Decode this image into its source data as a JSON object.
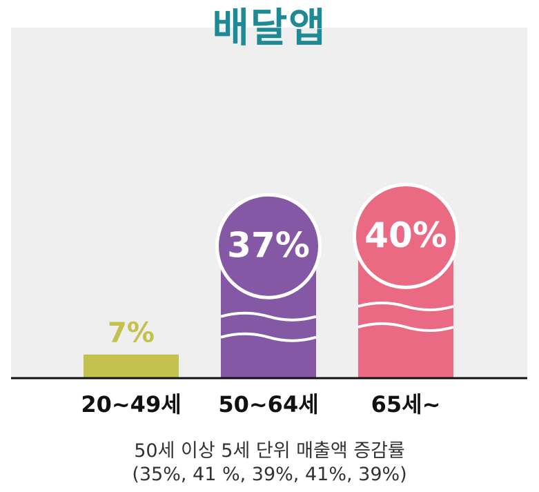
{
  "chart_data": {
    "type": "bar",
    "title": "배달앱",
    "categories": [
      "20~49세",
      "50~64세",
      "65세~"
    ],
    "values": [
      7,
      37,
      40
    ],
    "value_labels": [
      "7%",
      "37%",
      "40%"
    ],
    "colors": [
      "#c3c24e",
      "#8458a4",
      "#ea6a83"
    ],
    "ylim": [
      0,
      40
    ],
    "grid": false
  },
  "footnote": {
    "line1": "50세 이상 5세 단위 매출액 증감률",
    "line2": "(35%, 41 %, 39%, 41%, 39%)"
  }
}
